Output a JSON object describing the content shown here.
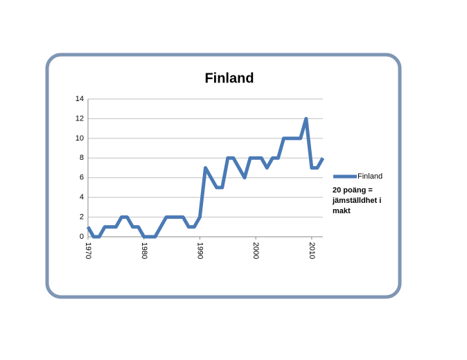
{
  "chart_data": {
    "type": "line",
    "title": "Finland",
    "x": [
      1970,
      1971,
      1972,
      1973,
      1974,
      1975,
      1976,
      1977,
      1978,
      1979,
      1980,
      1981,
      1982,
      1983,
      1984,
      1985,
      1986,
      1987,
      1988,
      1989,
      1990,
      1991,
      1992,
      1993,
      1994,
      1995,
      1996,
      1997,
      1998,
      1999,
      2000,
      2001,
      2002,
      2003,
      2004,
      2005,
      2006,
      2007,
      2008,
      2009,
      2010,
      2011,
      2012
    ],
    "series": [
      {
        "name": "Finland",
        "color": "#4a7ab5",
        "values": [
          1,
          0,
          0,
          1,
          1,
          1,
          2,
          2,
          1,
          1,
          0,
          0,
          0,
          1,
          2,
          2,
          2,
          2,
          1,
          1,
          2,
          7,
          6,
          5,
          5,
          8,
          8,
          7,
          6,
          8,
          8,
          8,
          7,
          8,
          8,
          10,
          10,
          10,
          10,
          12,
          7,
          7,
          8
        ]
      }
    ],
    "xlim": [
      1970,
      2012
    ],
    "xticks": [
      1970,
      1980,
      1990,
      2000,
      2010
    ],
    "ylim": [
      0,
      14
    ],
    "yticks": [
      0,
      2,
      4,
      6,
      8,
      10,
      12,
      14
    ],
    "grid": true,
    "legend": "right",
    "annotation": "20 poäng = jämställdhet i makt"
  }
}
